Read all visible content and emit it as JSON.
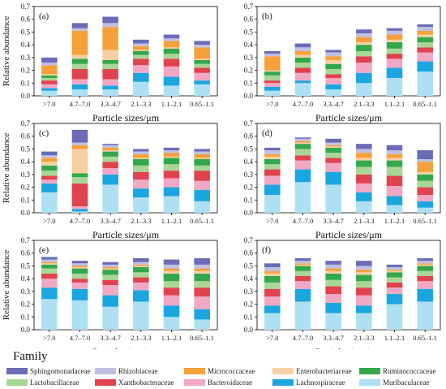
{
  "chart_data": [
    {
      "type": "bar",
      "stacked": true,
      "panel_label": "(a)",
      "categories": [
        ">7.0",
        "4.7–7.0",
        "3.3–4.7",
        "2.1–3.3",
        "1.1–2.1",
        "0.65–1.1"
      ],
      "xlabel": "Particle sizes/μm",
      "ylabel": "Relative abundance",
      "ylim": [
        0,
        0.7
      ],
      "yticks": [
        "0.0",
        "0.1",
        "0.2",
        "0.3",
        "0.4",
        "0.5",
        "0.6",
        "0.7"
      ],
      "series": [
        {
          "name": "Muribaculaceae",
          "values": [
            0.04,
            0.05,
            0.05,
            0.11,
            0.08,
            0.09
          ]
        },
        {
          "name": "Lachnospiraceae",
          "values": [
            0.02,
            0.04,
            0.03,
            0.07,
            0.07,
            0.03
          ]
        },
        {
          "name": "Bacteroidaceae",
          "values": [
            0.03,
            0.04,
            0.05,
            0.06,
            0.08,
            0.06
          ]
        },
        {
          "name": "Xanthobacteraceae",
          "values": [
            0.03,
            0.08,
            0.08,
            0.05,
            0.06,
            0.04
          ]
        },
        {
          "name": "Lactobacillaceae",
          "values": [
            0.02,
            0.04,
            0.04,
            0.03,
            0.04,
            0.03
          ]
        },
        {
          "name": "Ruminococcaceae",
          "values": [
            0.02,
            0.04,
            0.03,
            0.03,
            0.04,
            0.03
          ]
        },
        {
          "name": "Enterobacteriaceae",
          "values": [
            0.01,
            0.03,
            0.08,
            0.01,
            0.01,
            0.01
          ]
        },
        {
          "name": "Micrococcaceae",
          "values": [
            0.07,
            0.19,
            0.18,
            0.03,
            0.05,
            0.09
          ]
        },
        {
          "name": "Rhizobiaceae",
          "values": [
            0.02,
            0.02,
            0.03,
            0.02,
            0.02,
            0.02
          ]
        },
        {
          "name": "Sphingomonadaceae",
          "values": [
            0.04,
            0.04,
            0.05,
            0.03,
            0.03,
            0.03
          ]
        }
      ]
    },
    {
      "type": "bar",
      "stacked": true,
      "panel_label": "(b)",
      "categories": [
        ">7.0",
        "4.7–7.0",
        "3.3–4.7",
        "2.1–3.3",
        "1.1–2.1",
        "0.65–1.1"
      ],
      "xlabel": "Particle sizes/μm",
      "ylabel": "",
      "ylim": [
        0,
        0.7
      ],
      "yticks": [
        "0.0",
        "0.1",
        "0.2",
        "0.3",
        "0.4",
        "0.5",
        "0.6",
        "0.7"
      ],
      "series": [
        {
          "name": "Muribaculaceae",
          "values": [
            0.04,
            0.1,
            0.05,
            0.1,
            0.14,
            0.19
          ]
        },
        {
          "name": "Lachnospiraceae",
          "values": [
            0.03,
            0.02,
            0.04,
            0.08,
            0.08,
            0.08
          ]
        },
        {
          "name": "Bacteroidaceae",
          "values": [
            0.03,
            0.06,
            0.05,
            0.08,
            0.07,
            0.07
          ]
        },
        {
          "name": "Xanthobacteraceae",
          "values": [
            0.02,
            0.04,
            0.03,
            0.05,
            0.04,
            0.04
          ]
        },
        {
          "name": "Lactobacillaceae",
          "values": [
            0.04,
            0.04,
            0.04,
            0.04,
            0.04,
            0.04
          ]
        },
        {
          "name": "Ruminococcaceae",
          "values": [
            0.03,
            0.04,
            0.04,
            0.05,
            0.05,
            0.04
          ]
        },
        {
          "name": "Enterobacteriaceae",
          "values": [
            0.01,
            0.02,
            0.03,
            0.02,
            0.02,
            0.02
          ]
        },
        {
          "name": "Micrococcaceae",
          "values": [
            0.11,
            0.03,
            0.03,
            0.04,
            0.04,
            0.03
          ]
        },
        {
          "name": "Rhizobiaceae",
          "values": [
            0.02,
            0.03,
            0.03,
            0.03,
            0.03,
            0.03
          ]
        },
        {
          "name": "Sphingomonadaceae",
          "values": [
            0.02,
            0.03,
            0.02,
            0.03,
            0.02,
            0.02
          ]
        }
      ]
    },
    {
      "type": "bar",
      "stacked": true,
      "panel_label": "(c)",
      "categories": [
        ">7.0",
        "4.7–7.0",
        "3.3–4.7",
        "2.1–3.3",
        "1.1–2.1",
        "0.65–1.1"
      ],
      "xlabel": "Particle sizes/μm",
      "ylabel": "Relative abundance",
      "ylim": [
        0,
        0.7
      ],
      "yticks": [
        "0.0",
        "0.1",
        "0.2",
        "0.3",
        "0.4",
        "0.5",
        "0.6",
        "0.7"
      ],
      "series": [
        {
          "name": "Muribaculaceae",
          "values": [
            0.16,
            0.01,
            0.22,
            0.12,
            0.13,
            0.09
          ]
        },
        {
          "name": "Lachnospiraceae",
          "values": [
            0.07,
            0.02,
            0.08,
            0.07,
            0.07,
            0.09
          ]
        },
        {
          "name": "Bacteroidaceae",
          "values": [
            0.03,
            0.02,
            0.05,
            0.07,
            0.07,
            0.07
          ]
        },
        {
          "name": "Xanthobacteraceae",
          "values": [
            0.03,
            0.18,
            0.05,
            0.06,
            0.06,
            0.08
          ]
        },
        {
          "name": "Lactobacillaceae",
          "values": [
            0.04,
            0.05,
            0.04,
            0.05,
            0.05,
            0.04
          ]
        },
        {
          "name": "Ruminococcaceae",
          "values": [
            0.04,
            0.03,
            0.04,
            0.05,
            0.05,
            0.05
          ]
        },
        {
          "name": "Enterobacteriaceae",
          "values": [
            0.03,
            0.19,
            0.01,
            0.01,
            0.01,
            0.01
          ]
        },
        {
          "name": "Micrococcaceae",
          "values": [
            0.03,
            0.03,
            0.02,
            0.03,
            0.03,
            0.03
          ]
        },
        {
          "name": "Rhizobiaceae",
          "values": [
            0.02,
            0.02,
            0.02,
            0.02,
            0.02,
            0.02
          ]
        },
        {
          "name": "Sphingomonadaceae",
          "values": [
            0.03,
            0.1,
            0.01,
            0.02,
            0.02,
            0.02
          ]
        }
      ]
    },
    {
      "type": "bar",
      "stacked": true,
      "panel_label": "(d)",
      "categories": [
        ">7.0",
        "4.7–7.0",
        "3.3–4.7",
        "2.1–3.3",
        "1.1–2.1",
        "0.65–1.1"
      ],
      "xlabel": "Particle sizes/μm",
      "ylabel": "",
      "ylim": [
        0,
        0.7
      ],
      "yticks": [
        "0.0",
        "0.1",
        "0.2",
        "0.3",
        "0.4",
        "0.5",
        "0.6",
        "0.7"
      ],
      "series": [
        {
          "name": "Muribaculaceae",
          "values": [
            0.14,
            0.24,
            0.22,
            0.09,
            0.06,
            0.04
          ]
        },
        {
          "name": "Lachnospiraceae",
          "values": [
            0.08,
            0.1,
            0.1,
            0.07,
            0.07,
            0.05
          ]
        },
        {
          "name": "Bacteroidaceae",
          "values": [
            0.07,
            0.07,
            0.07,
            0.07,
            0.08,
            0.05
          ]
        },
        {
          "name": "Xanthobacteraceae",
          "values": [
            0.05,
            0.04,
            0.04,
            0.07,
            0.08,
            0.06
          ]
        },
        {
          "name": "Lactobacillaceae",
          "values": [
            0.04,
            0.05,
            0.04,
            0.06,
            0.07,
            0.05
          ]
        },
        {
          "name": "Ruminococcaceae",
          "values": [
            0.04,
            0.04,
            0.04,
            0.05,
            0.05,
            0.05
          ]
        },
        {
          "name": "Enterobacteriaceae",
          "values": [
            0.02,
            0.01,
            0.01,
            0.02,
            0.02,
            0.02
          ]
        },
        {
          "name": "Micrococcaceae",
          "values": [
            0.02,
            0.01,
            0.01,
            0.04,
            0.03,
            0.08
          ]
        },
        {
          "name": "Rhizobiaceae",
          "values": [
            0.03,
            0.02,
            0.02,
            0.03,
            0.03,
            0.02
          ]
        },
        {
          "name": "Sphingomonadaceae",
          "values": [
            0.02,
            0.01,
            0.03,
            0.04,
            0.04,
            0.07
          ]
        }
      ]
    },
    {
      "type": "bar",
      "stacked": true,
      "panel_label": "(e)",
      "categories": [
        ">7.0",
        "4.7–7.0",
        "3.3–4.7",
        "2.1–3.3",
        "1.1–2.1",
        "0.65–1.1"
      ],
      "xlabel": "Particle sizes/μm",
      "ylabel": "Relative abundance",
      "ylim": [
        0,
        0.7
      ],
      "yticks": [
        "0.0",
        "0.1",
        "0.2",
        "0.3",
        "0.4",
        "0.5",
        "0.6",
        "0.7"
      ],
      "series": [
        {
          "name": "Muribaculaceae",
          "values": [
            0.24,
            0.23,
            0.18,
            0.22,
            0.1,
            0.08
          ]
        },
        {
          "name": "Lachnospiraceae",
          "values": [
            0.09,
            0.09,
            0.09,
            0.09,
            0.09,
            0.08
          ]
        },
        {
          "name": "Bacteroidaceae",
          "values": [
            0.07,
            0.05,
            0.08,
            0.06,
            0.08,
            0.1
          ]
        },
        {
          "name": "Xanthobacteraceae",
          "values": [
            0.04,
            0.03,
            0.04,
            0.04,
            0.06,
            0.07
          ]
        },
        {
          "name": "Lactobacillaceae",
          "values": [
            0.04,
            0.04,
            0.04,
            0.04,
            0.05,
            0.05
          ]
        },
        {
          "name": "Ruminococcaceae",
          "values": [
            0.03,
            0.04,
            0.04,
            0.04,
            0.06,
            0.06
          ]
        },
        {
          "name": "Enterobacteriaceae",
          "values": [
            0.01,
            0.01,
            0.01,
            0.01,
            0.02,
            0.02
          ]
        },
        {
          "name": "Micrococcaceae",
          "values": [
            0.01,
            0.01,
            0.01,
            0.01,
            0.02,
            0.02
          ]
        },
        {
          "name": "Rhizobiaceae",
          "values": [
            0.02,
            0.02,
            0.02,
            0.02,
            0.03,
            0.03
          ]
        },
        {
          "name": "Sphingomonadaceae",
          "values": [
            0.02,
            0.02,
            0.02,
            0.03,
            0.04,
            0.05
          ]
        }
      ]
    },
    {
      "type": "bar",
      "stacked": true,
      "panel_label": "(f)",
      "categories": [
        ">7.0",
        "4.7–7.0",
        "3.3–4.7",
        "2.1–3.3",
        "1.1–2.1",
        "0.65–1.1"
      ],
      "xlabel": "Particle sizes/μm",
      "ylabel": "",
      "ylim": [
        0,
        0.7
      ],
      "yticks": [
        "0.0",
        "0.1",
        "0.2",
        "0.3",
        "0.4",
        "0.5",
        "0.6",
        "0.7"
      ],
      "series": [
        {
          "name": "Muribaculaceae",
          "values": [
            0.13,
            0.22,
            0.13,
            0.13,
            0.2,
            0.22
          ]
        },
        {
          "name": "Lachnospiraceae",
          "values": [
            0.06,
            0.1,
            0.08,
            0.06,
            0.08,
            0.1
          ]
        },
        {
          "name": "Bacteroidaceae",
          "values": [
            0.07,
            0.06,
            0.07,
            0.08,
            0.05,
            0.06
          ]
        },
        {
          "name": "Xanthobacteraceae",
          "values": [
            0.06,
            0.04,
            0.06,
            0.06,
            0.04,
            0.04
          ]
        },
        {
          "name": "Lactobacillaceae",
          "values": [
            0.05,
            0.04,
            0.05,
            0.05,
            0.04,
            0.04
          ]
        },
        {
          "name": "Ruminococcaceae",
          "values": [
            0.05,
            0.04,
            0.05,
            0.05,
            0.04,
            0.04
          ]
        },
        {
          "name": "Enterobacteriaceae",
          "values": [
            0.02,
            0.01,
            0.02,
            0.02,
            0.01,
            0.01
          ]
        },
        {
          "name": "Micrococcaceae",
          "values": [
            0.02,
            0.01,
            0.02,
            0.02,
            0.01,
            0.01
          ]
        },
        {
          "name": "Rhizobiaceae",
          "values": [
            0.03,
            0.02,
            0.03,
            0.03,
            0.02,
            0.02
          ]
        },
        {
          "name": "Sphingomonadaceae",
          "values": [
            0.03,
            0.02,
            0.03,
            0.04,
            0.02,
            0.02
          ]
        }
      ]
    }
  ],
  "legend": {
    "title": "Family",
    "items": [
      {
        "name": "Sphingomonadaceae",
        "color": "#6a6cb8"
      },
      {
        "name": "Rhizobiaceae",
        "color": "#c0bfe3"
      },
      {
        "name": "Micrococcaceae",
        "color": "#f5a03b"
      },
      {
        "name": "Enterobacteriaceae",
        "color": "#f6cfa2"
      },
      {
        "name": "Ruminococcaceae",
        "color": "#33a84a"
      },
      {
        "name": "Lactobacillaceae",
        "color": "#a8d695"
      },
      {
        "name": "Xanthobacteraceae",
        "color": "#e0434e"
      },
      {
        "name": "Bacteroidaceae",
        "color": "#f0a8c4"
      },
      {
        "name": "Lachnospiraceae",
        "color": "#1ca6e0"
      },
      {
        "name": "Muribaculaceae",
        "color": "#aee0f4"
      }
    ]
  }
}
